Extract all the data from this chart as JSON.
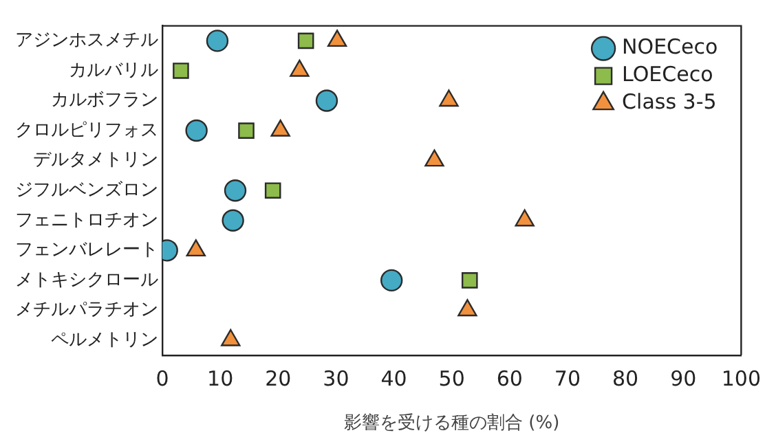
{
  "chart_data": {
    "type": "scatter",
    "orientation": "horizontal",
    "xlabel": "影響を受ける種の割合 (%)",
    "categories": [
      "アジンホスメチル",
      "カルバリル",
      "カルボフラン",
      "クロルピリフォス",
      "デルタメトリン",
      "ジフルベンズロン",
      "フェニトロチオン",
      "フェンバレレート",
      "メトキシクロール",
      "メチルパラチオン",
      "ペルメトリン"
    ],
    "series": [
      {
        "name": "NOECeco",
        "color": "#45aac4",
        "marker": "circle",
        "values": [
          9.5,
          null,
          28.4,
          5.9,
          null,
          12.6,
          12.2,
          0.8,
          39.6,
          null,
          null
        ]
      },
      {
        "name": "LOECeco",
        "color": "#8dbb4c",
        "marker": "square",
        "values": [
          24.8,
          3.2,
          null,
          14.5,
          null,
          19.1,
          null,
          null,
          53.1,
          null,
          null
        ]
      },
      {
        "name": "Class 3-5",
        "color": "#f2913d",
        "marker": "triangle",
        "values": [
          30.2,
          23.7,
          49.5,
          20.4,
          47,
          null,
          62.6,
          5.8,
          null,
          52.7,
          11.8
        ]
      }
    ],
    "xlim": [
      0,
      100
    ],
    "xticks": [
      0,
      10,
      20,
      30,
      40,
      50,
      60,
      70,
      80,
      90,
      100
    ],
    "grid": false,
    "legend": "top right"
  }
}
